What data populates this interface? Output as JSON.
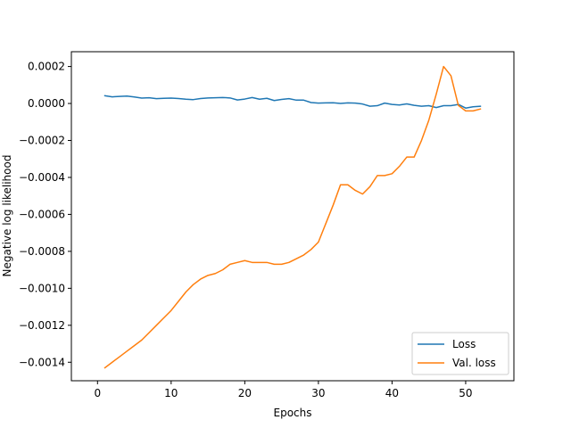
{
  "chart_data": {
    "type": "line",
    "xlabel": "Epochs",
    "ylabel": "Negative log likelihood",
    "xlim": [
      -3.55,
      56.55
    ],
    "ylim": [
      -0.0015,
      0.00028
    ],
    "xticks": [
      0,
      10,
      20,
      30,
      40,
      50
    ],
    "xtick_labels": [
      "0",
      "10",
      "20",
      "30",
      "40",
      "50"
    ],
    "yticks": [
      -0.0014,
      -0.0012,
      -0.001,
      -0.0008,
      -0.0006,
      -0.0004,
      -0.0002,
      0.0,
      0.0002
    ],
    "ytick_labels": [
      "−0.0014",
      "−0.0012",
      "−0.0010",
      "−0.0008",
      "−0.0006",
      "−0.0004",
      "−0.0002",
      "0.0000",
      "0.0002"
    ],
    "grid": false,
    "legend_position": "lower-right",
    "x": [
      1,
      2,
      3,
      4,
      5,
      6,
      7,
      8,
      9,
      10,
      11,
      12,
      13,
      14,
      15,
      16,
      17,
      18,
      19,
      20,
      21,
      22,
      23,
      24,
      25,
      26,
      27,
      28,
      29,
      30,
      31,
      32,
      33,
      34,
      35,
      36,
      37,
      38,
      39,
      40,
      41,
      42,
      43,
      44,
      45,
      46,
      47,
      48,
      49,
      50,
      51,
      52
    ],
    "series": [
      {
        "name": "Loss",
        "color": "#1f77b4",
        "values": [
          4.2e-05,
          3.6e-05,
          3.8e-05,
          4e-05,
          3.5e-05,
          2.9e-05,
          3.1e-05,
          2.6e-05,
          2.8e-05,
          2.9e-05,
          2.7e-05,
          2.3e-05,
          2.1e-05,
          2.7e-05,
          3e-05,
          3.1e-05,
          3.2e-05,
          3e-05,
          1.9e-05,
          2.4e-05,
          3.2e-05,
          2.3e-05,
          2.8e-05,
          1.6e-05,
          2.2e-05,
          2.6e-05,
          1.8e-05,
          1.8e-05,
          5e-06,
          2e-06,
          3e-06,
          4e-06,
          0.0,
          3e-06,
          2e-06,
          -3e-06,
          -1.5e-05,
          -1.2e-05,
          2e-06,
          -5e-06,
          -8e-06,
          -2e-06,
          -1e-05,
          -1.5e-05,
          -1.2e-05,
          -2.2e-05,
          -1.2e-05,
          -1.2e-05,
          -5e-06,
          -2.5e-05,
          -1.8e-05,
          -1.5e-05
        ]
      },
      {
        "name": "Val. loss",
        "color": "#ff7f0e",
        "values": [
          -0.00143,
          -0.0014,
          -0.00137,
          -0.00134,
          -0.00131,
          -0.00128,
          -0.00124,
          -0.0012,
          -0.00116,
          -0.00112,
          -0.00107,
          -0.00102,
          -0.00098,
          -0.00095,
          -0.00093,
          -0.00092,
          -0.0009,
          -0.00087,
          -0.00086,
          -0.00085,
          -0.00086,
          -0.00086,
          -0.00086,
          -0.00087,
          -0.00087,
          -0.00086,
          -0.00084,
          -0.00082,
          -0.00079,
          -0.00075,
          -0.00065,
          -0.00055,
          -0.00044,
          -0.00044,
          -0.00047,
          -0.00049,
          -0.00045,
          -0.00039,
          -0.00039,
          -0.00038,
          -0.00034,
          -0.00029,
          -0.00029,
          -0.0002,
          -9e-05,
          5e-05,
          0.0002,
          0.00015,
          -1e-05,
          -4e-05,
          -4e-05,
          -3e-05
        ]
      }
    ]
  }
}
